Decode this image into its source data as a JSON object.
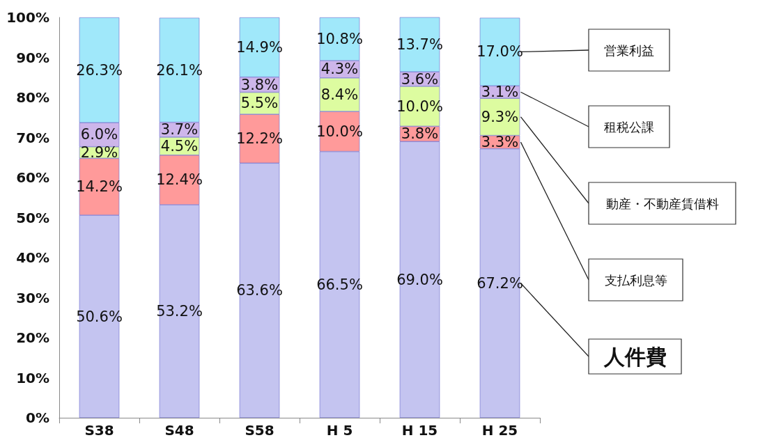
{
  "chart_data": {
    "type": "bar",
    "stacked": true,
    "categories": [
      "S38",
      "S48",
      "S58",
      "H 5",
      "H 15",
      "H 25"
    ],
    "ylim": [
      0,
      100
    ],
    "yticks": [
      {
        "value": 0,
        "label": "0%"
      },
      {
        "value": 10,
        "label": "10%"
      },
      {
        "value": 20,
        "label": "20%"
      },
      {
        "value": 30,
        "label": "30%"
      },
      {
        "value": 40,
        "label": "40%"
      },
      {
        "value": 50,
        "label": "50%"
      },
      {
        "value": 60,
        "label": "60%"
      },
      {
        "value": 70,
        "label": "70%"
      },
      {
        "value": 80,
        "label": "80%"
      },
      {
        "value": 90,
        "label": "90%"
      },
      {
        "value": 100,
        "label": "100%"
      }
    ],
    "grid": false,
    "series": [
      {
        "name": "人件費",
        "color": "#c4c4f0",
        "values": [
          50.6,
          53.2,
          63.6,
          66.5,
          69.0,
          67.2
        ],
        "value_labels": [
          "50.6%",
          "53.2%",
          "63.6%",
          "66.5%",
          "69.0%",
          "67.2%"
        ]
      },
      {
        "name": "支払利息等",
        "color": "#ff9a9a",
        "values": [
          14.2,
          12.4,
          12.2,
          10.0,
          3.8,
          3.3
        ],
        "value_labels": [
          "14.2%",
          "12.4%",
          "12.2%",
          "10.0%",
          "3.8%",
          "3.3%"
        ]
      },
      {
        "name": "動産・不動産賃借料",
        "color": "#ddfca0",
        "values": [
          2.9,
          4.5,
          5.5,
          8.4,
          10.0,
          9.3
        ],
        "value_labels": [
          "2.9%",
          "4.5%",
          "5.5%",
          "8.4%",
          "10.0%",
          "9.3%"
        ]
      },
      {
        "name": "租税公課",
        "color": "#cdb6ea",
        "values": [
          6.0,
          3.7,
          3.8,
          4.3,
          3.6,
          3.1
        ],
        "value_labels": [
          "6.0%",
          "3.7%",
          "3.8%",
          "4.3%",
          "3.6%",
          "3.1%"
        ]
      },
      {
        "name": "営業利益",
        "color": "#a0e8fa",
        "values": [
          26.3,
          26.1,
          14.9,
          10.8,
          13.7,
          17.0
        ],
        "value_labels": [
          "26.3%",
          "26.1%",
          "14.9%",
          "10.8%",
          "13.7%",
          "17.0%"
        ]
      }
    ]
  }
}
